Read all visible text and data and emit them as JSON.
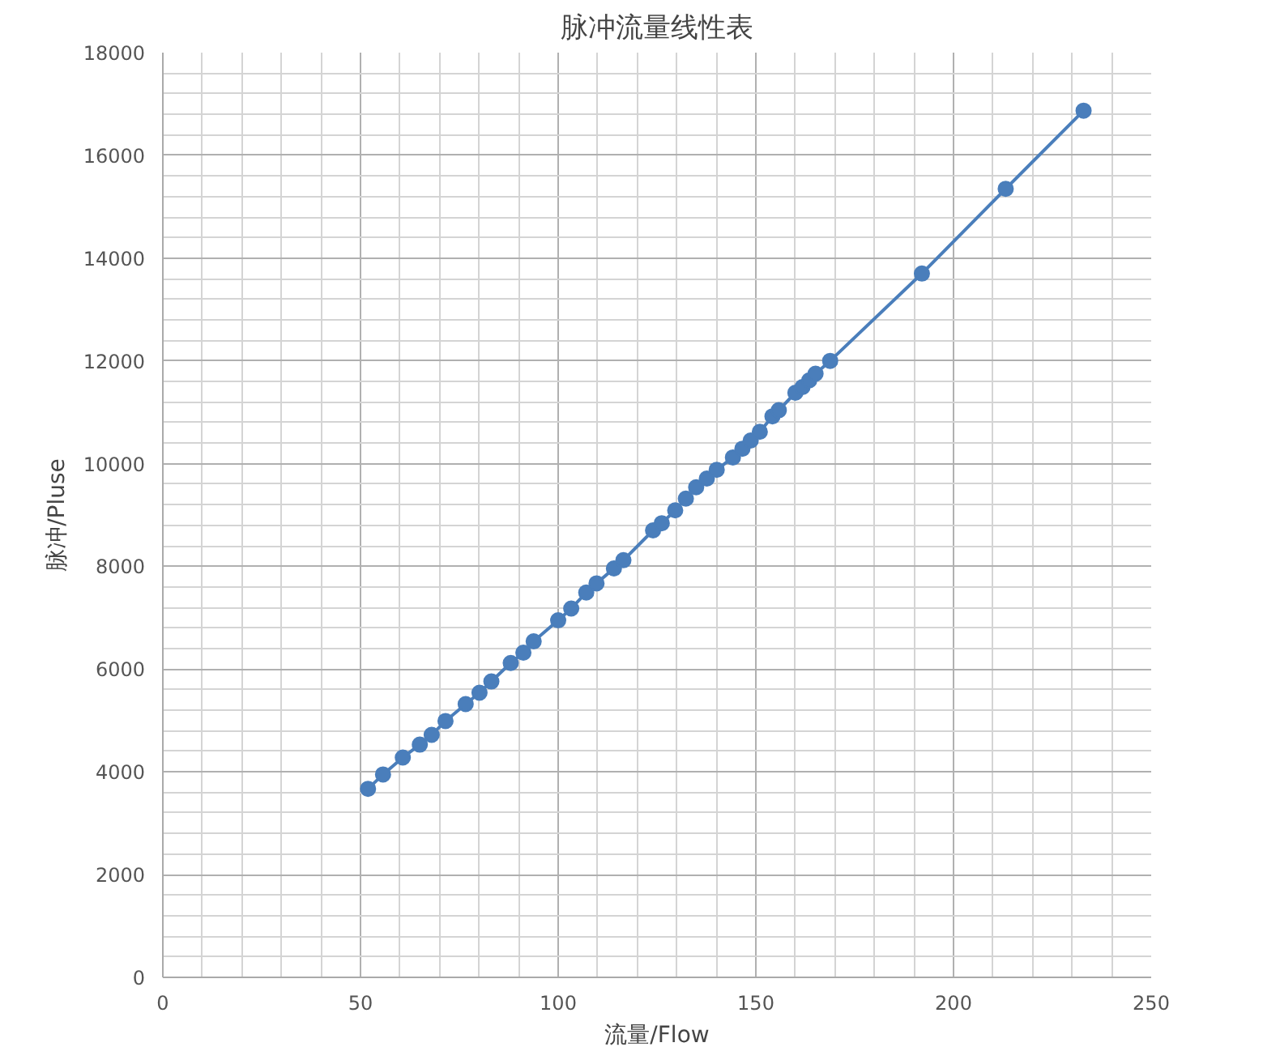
{
  "chart_data": {
    "type": "line",
    "title": "脉冲流量线性表",
    "xlabel": "流量/Flow",
    "ylabel": "脉冲/Pluse",
    "xlim": [
      0,
      250
    ],
    "xticks": [
      0,
      50,
      100,
      150,
      200,
      250
    ],
    "ylim": [
      0,
      18000
    ],
    "yticks": [
      0,
      2000,
      4000,
      6000,
      8000,
      10000,
      12000,
      14000,
      16000,
      18000
    ],
    "grid": true,
    "marker": "circle",
    "line_style": "solid",
    "series": [
      {
        "color": "#4a7ebb",
        "x": [
          51.9,
          55.7,
          60.7,
          65.0,
          68.0,
          71.5,
          76.6,
          80.1,
          83.1,
          88.0,
          91.2,
          93.8,
          100.0,
          103.3,
          107.1,
          109.7,
          114.1,
          116.5,
          124.0,
          126.2,
          129.6,
          132.3,
          134.9,
          137.6,
          140.1,
          144.2,
          146.6,
          148.7,
          151.0,
          154.2,
          155.8,
          160.0,
          161.8,
          163.5,
          165.1,
          168.8,
          192.0,
          213.2,
          232.9
        ],
        "values": [
          3670,
          3950,
          4280,
          4530,
          4720,
          4990,
          5320,
          5540,
          5760,
          6120,
          6320,
          6540,
          6950,
          7180,
          7490,
          7670,
          7960,
          8120,
          8700,
          8840,
          9090,
          9320,
          9540,
          9710,
          9880,
          10120,
          10290,
          10450,
          10620,
          10920,
          11040,
          11380,
          11490,
          11620,
          11750,
          12000,
          13700,
          15350,
          16870
        ]
      }
    ]
  }
}
